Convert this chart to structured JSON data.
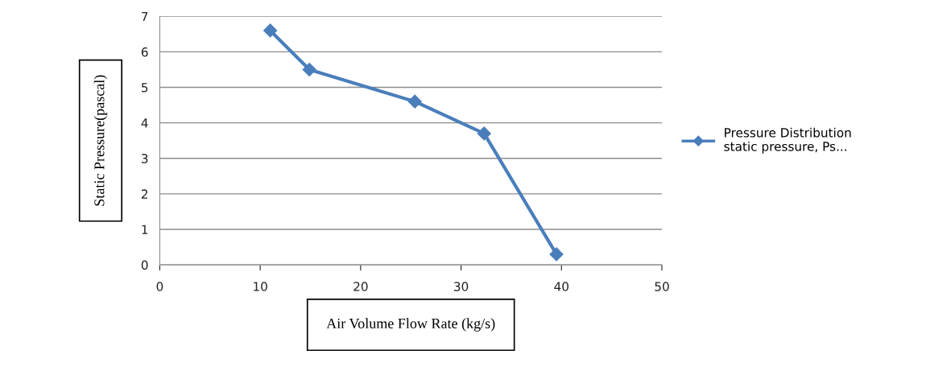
{
  "chart_data": {
    "type": "line",
    "xlabel": "Air Volume Flow Rate (kg/s)",
    "ylabel": "Static Pressure(pascal)",
    "series": [
      {
        "name": "Pressure Distribution\nstatic pressure, Ps...",
        "color": "#4a7ebb",
        "x": [
          11,
          14.9,
          25.4,
          32.3,
          39.5
        ],
        "values": [
          6.6,
          5.5,
          4.6,
          3.7,
          0.3
        ]
      }
    ],
    "xlim": [
      0,
      50
    ],
    "xticks": [
      0,
      10,
      20,
      30,
      40,
      50
    ],
    "ylim": [
      0,
      7
    ],
    "yticks": [
      0,
      1,
      2,
      3,
      4,
      5,
      6,
      7
    ],
    "grid": "y",
    "legend": "right",
    "marker": "diamond",
    "line_style": "solid"
  }
}
